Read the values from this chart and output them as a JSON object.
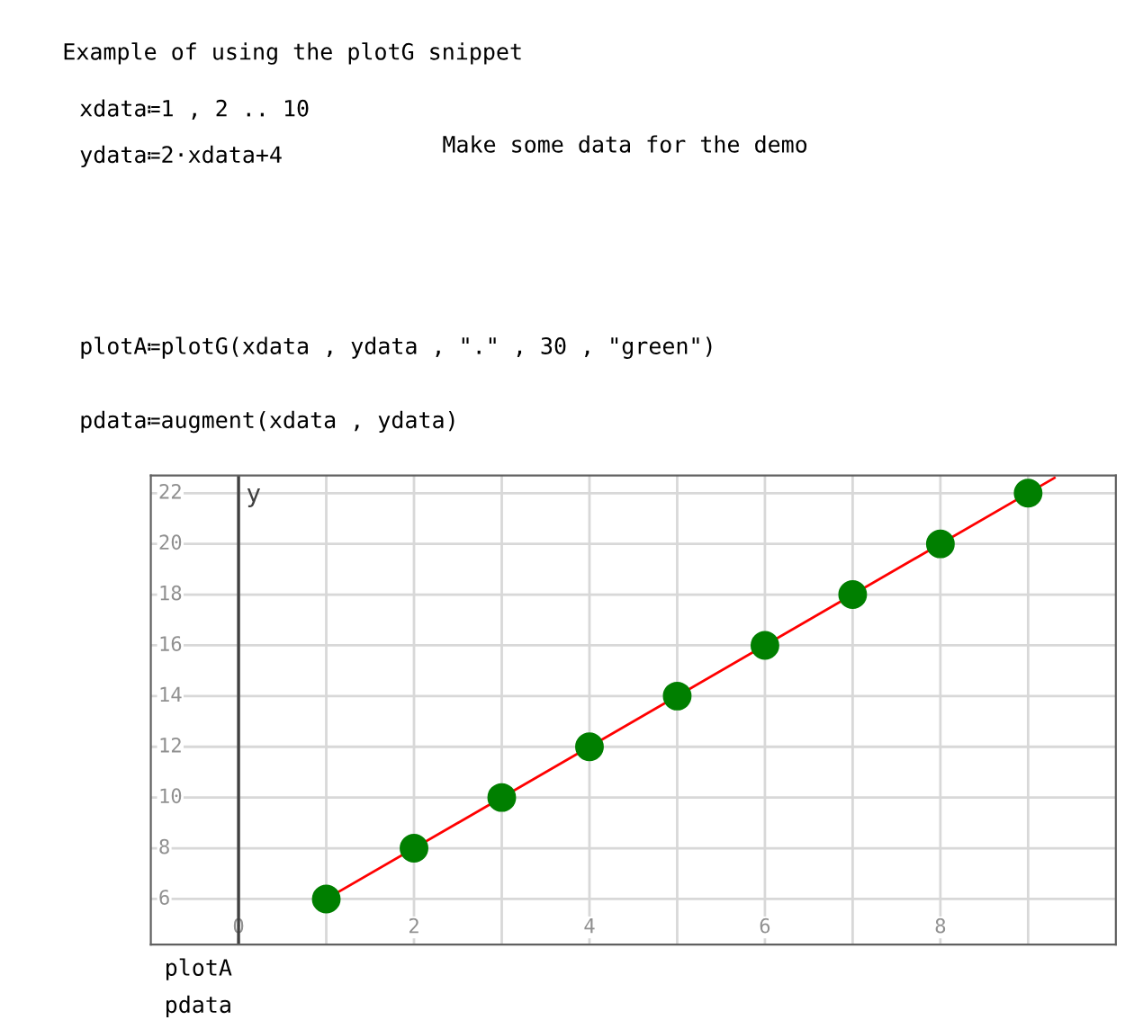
{
  "chart_data": {
    "type": "scatter",
    "annotations": [
      "Example of using the plotG snippet",
      "xdata≔1 , 2 .. 10",
      "ydata≔2·xdata+4",
      "Make some data for the demo",
      "plotA≔plotG(xdata , ydata , \".\" , 30 , \"green\")",
      "pdata≔augment(xdata , ydata)",
      "plotA",
      "pdata"
    ],
    "x": [
      1,
      2,
      3,
      4,
      5,
      6,
      7,
      8,
      9
    ],
    "series": [
      {
        "color": "#007f00",
        "marker": "circle",
        "values": [
          6,
          8,
          10,
          12,
          14,
          16,
          18,
          20,
          22
        ]
      },
      {
        "type": "line",
        "color": "#ff0000",
        "marker": "none",
        "line_style": "solid",
        "x": [
          1,
          9.3
        ],
        "values": [
          6,
          22.6
        ]
      }
    ],
    "xlim": [
      -1,
      10
    ],
    "xticks": [
      0,
      {
        "value": 1,
        "label": null
      },
      2,
      {
        "value": 3,
        "label": null
      },
      4,
      {
        "value": 5,
        "label": null
      },
      6,
      {
        "value": 7,
        "label": null
      },
      8,
      {
        "value": 9,
        "label": null
      }
    ],
    "ylim": [
      4.2,
      22.7
    ],
    "yticks": [
      6,
      8,
      10,
      12,
      14,
      16,
      18,
      20,
      22
    ],
    "ref_lines": [
      {
        "axis": "x",
        "value": 0,
        "label": "y",
        "color": "#404040"
      }
    ],
    "grid": true
  }
}
